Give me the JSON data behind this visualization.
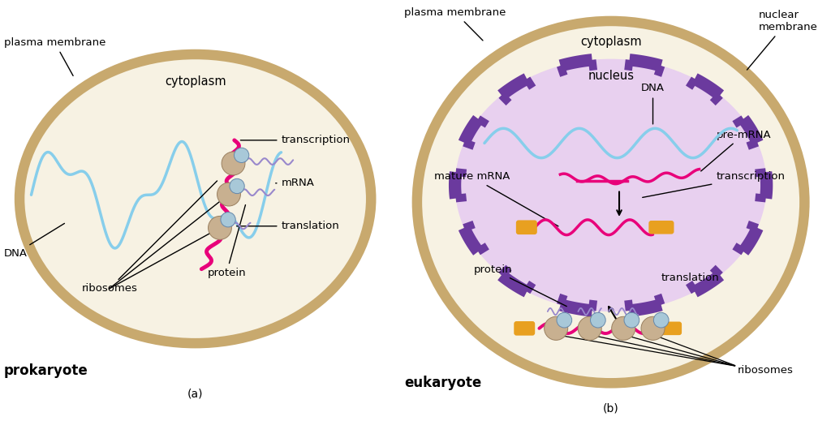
{
  "bg_color": "#ffffff",
  "cell_fill_a": "#f7f2e3",
  "cell_edge_a": "#c8a96e",
  "cell_fill_b": "#f7f2e3",
  "cell_edge_b": "#c8a96e",
  "nucleus_fill": "#e8d0ef",
  "nucleus_edge": "#6b3a9e",
  "dna_color": "#87ceeb",
  "mrna_color": "#e8007a",
  "ribosome_tan": "#c8b090",
  "ribosome_blue": "#a8c8d8",
  "purple_squiggle": "#9988cc",
  "orange_pill": "#e8a020",
  "black": "#000000",
  "title_a": "prokaryote",
  "title_b": "eukaryote",
  "sub_a": "(a)",
  "sub_b": "(b)"
}
